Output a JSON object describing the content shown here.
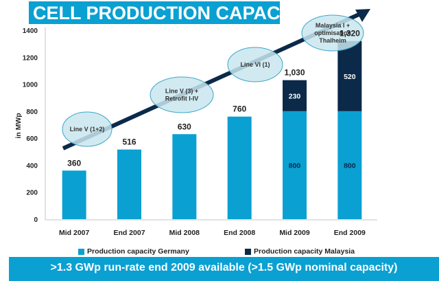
{
  "title": "CELL PRODUCTION CAPACITIES",
  "footer": ">1.3 GWp run-rate end 2009 available (>1.5 GWp nominal capacity)",
  "colors": {
    "germany": "#0aa0d2",
    "malaysia": "#0b2a4a",
    "title_bg": "#0aa0d2",
    "arrow": "#0b2a4a",
    "ellipse_fill": "#c9e6ee",
    "ellipse_stroke": "#3aa6c8"
  },
  "chart_data": {
    "type": "bar",
    "stacked": true,
    "title": "CELL PRODUCTION CAPACITIES",
    "xlabel": "",
    "ylabel": "in MWp",
    "ylim": [
      0,
      1400
    ],
    "yticks": [
      0,
      200,
      400,
      600,
      800,
      1000,
      1200,
      1400
    ],
    "grid": false,
    "legend_position": "bottom",
    "categories": [
      "Mid 2007",
      "End 2007",
      "Mid 2008",
      "End 2008",
      "Mid 2009",
      "End 2009"
    ],
    "series": [
      {
        "name": "Production capacity Germany",
        "values": [
          360,
          516,
          630,
          760,
          800,
          800
        ]
      },
      {
        "name": "Production capacity Malaysia",
        "values": [
          0,
          0,
          0,
          0,
          230,
          520
        ]
      }
    ],
    "totals": [
      "360",
      "516",
      "630",
      "760",
      "1,030",
      "1,320"
    ],
    "inner_labels": {
      "germany": [
        "",
        "",
        "",
        "",
        "800",
        "800"
      ],
      "malaysia": [
        "",
        "",
        "",
        "",
        "230",
        "520"
      ]
    },
    "annotations": [
      {
        "lines": [
          "Line V (1+2)"
        ]
      },
      {
        "lines": [
          "Line V (3) +",
          "Retrofit I-IV"
        ]
      },
      {
        "lines": [
          "Line VI (1)"
        ]
      },
      {
        "lines": [
          "Malaysia I +",
          "optimisation",
          "Thalheim"
        ]
      }
    ]
  }
}
